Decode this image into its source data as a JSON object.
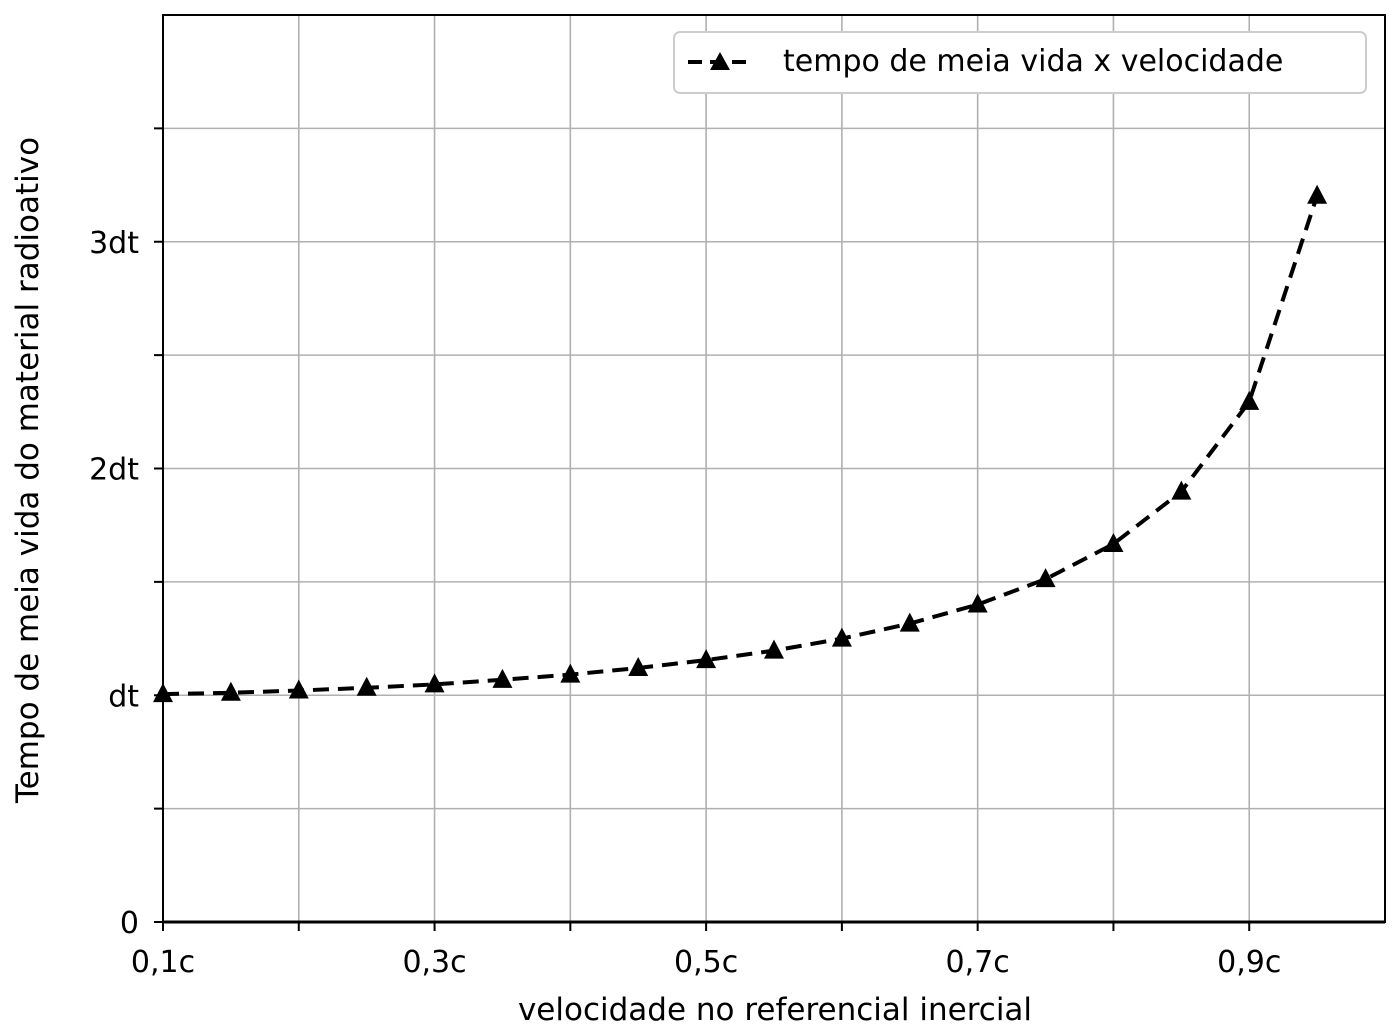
{
  "chart_data": {
    "type": "line",
    "xlabel": "velocidade no referencial inercial",
    "ylabel": "Tempo de meia vida do material radioativo",
    "xlim": [
      0.1,
      1.0
    ],
    "ylim": [
      0,
      4.0
    ],
    "x_ticks": [
      {
        "value": 0.1,
        "label": "0,1c"
      },
      {
        "value": 0.2,
        "label": ""
      },
      {
        "value": 0.3,
        "label": "0,3c"
      },
      {
        "value": 0.4,
        "label": ""
      },
      {
        "value": 0.5,
        "label": "0,5c"
      },
      {
        "value": 0.6,
        "label": ""
      },
      {
        "value": 0.7,
        "label": "0,7c"
      },
      {
        "value": 0.8,
        "label": ""
      },
      {
        "value": 0.9,
        "label": "0,9c"
      }
    ],
    "y_ticks": [
      {
        "value": 0,
        "label": "0"
      },
      {
        "value": 0.5,
        "label": ""
      },
      {
        "value": 1,
        "label": "dt"
      },
      {
        "value": 1.5,
        "label": ""
      },
      {
        "value": 2,
        "label": "2dt"
      },
      {
        "value": 2.5,
        "label": ""
      },
      {
        "value": 3,
        "label": "3dt"
      },
      {
        "value": 3.5,
        "label": ""
      }
    ],
    "grid": true,
    "legend_position": "top-right",
    "series": [
      {
        "name": "tempo de meia vida x velocidade",
        "color": "#000000",
        "line_style": "dashed",
        "marker": "triangle-up",
        "x": [
          0.1,
          0.15,
          0.2,
          0.25,
          0.3,
          0.35,
          0.4,
          0.45,
          0.5,
          0.55,
          0.6,
          0.65,
          0.7,
          0.75,
          0.8,
          0.85,
          0.9,
          0.95
        ],
        "y": [
          1.005,
          1.011,
          1.021,
          1.033,
          1.048,
          1.068,
          1.091,
          1.12,
          1.155,
          1.197,
          1.25,
          1.316,
          1.4,
          1.512,
          1.667,
          1.898,
          2.294,
          3.203
        ]
      }
    ]
  }
}
